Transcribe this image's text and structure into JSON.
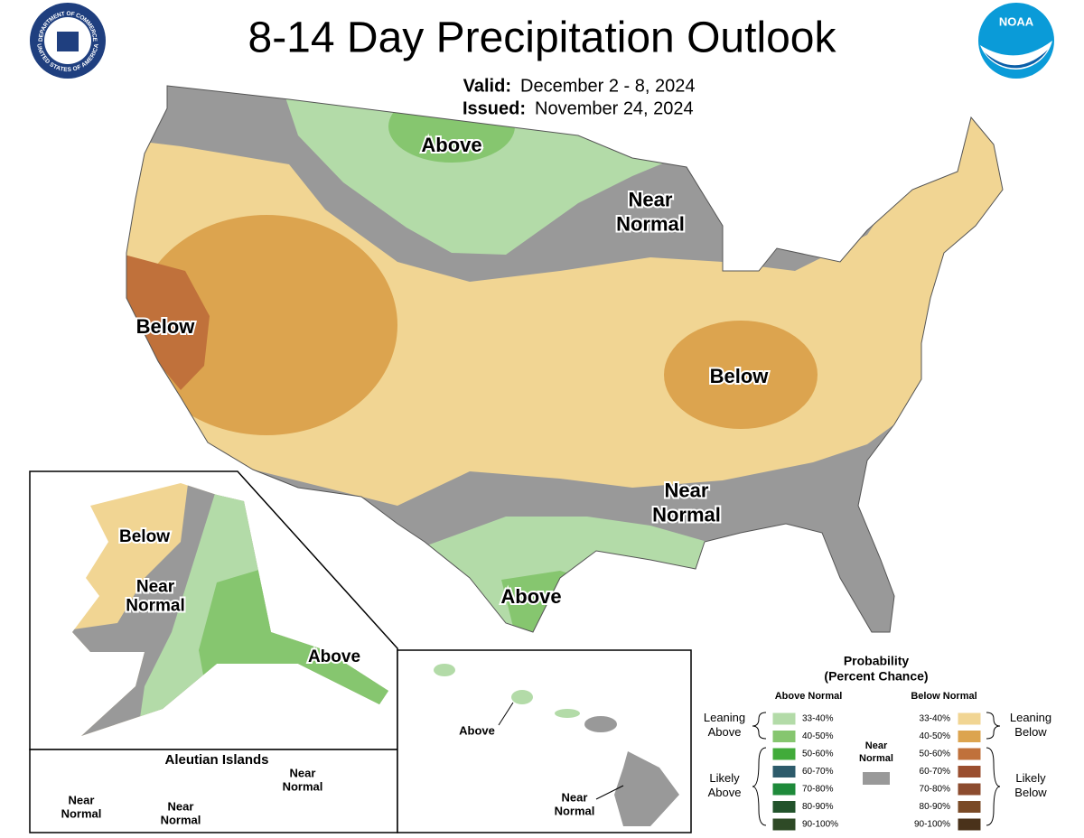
{
  "header": {
    "title": "8-14 Day Precipitation Outlook",
    "valid_label": "Valid:",
    "valid": "December 2 - 8, 2024",
    "issued_label": "Issued:",
    "issued": "November 24, 2024"
  },
  "logos": {
    "commerce_top": "DEPARTMENT OF COMMERCE",
    "commerce_bottom": "UNITED STATES OF AMERICA",
    "noaa": "NOAA"
  },
  "labels": {
    "conus": [
      "Above",
      "Near Normal",
      "Below",
      "Below",
      "Near Normal",
      "Above"
    ],
    "alaska": [
      "Below",
      "Near Normal",
      "Above"
    ],
    "hawaii": [
      "Above",
      "Near Normal"
    ],
    "aleutians": {
      "title": "Aleutian Islands",
      "items": [
        "Near Normal",
        "Near Normal",
        "Near Normal"
      ]
    }
  },
  "legend": {
    "title": "Probability",
    "subtitle": "(Percent Chance)",
    "above_header": "Above Normal",
    "below_header": "Below Normal",
    "near_header": "Near Normal",
    "near_color": "#999999",
    "leaning_above": "Leaning Above",
    "likely_above": "Likely Above",
    "leaning_below": "Leaning Below",
    "likely_below": "Likely Below",
    "above": [
      {
        "label": "33-40%",
        "color": "#b3dba8"
      },
      {
        "label": "40-50%",
        "color": "#86c66f"
      },
      {
        "label": "50-60%",
        "color": "#41ab3a"
      },
      {
        "label": "60-70%",
        "color": "#2d5b6b"
      },
      {
        "label": "70-80%",
        "color": "#1e8a3a"
      },
      {
        "label": "80-90%",
        "color": "#22532b"
      },
      {
        "label": "90-100%",
        "color": "#2e4a26"
      }
    ],
    "below": [
      {
        "label": "33-40%",
        "color": "#f1d593"
      },
      {
        "label": "40-50%",
        "color": "#dca44f"
      },
      {
        "label": "50-60%",
        "color": "#c0713b"
      },
      {
        "label": "60-70%",
        "color": "#9a4e2e"
      },
      {
        "label": "70-80%",
        "color": "#8c4b2e"
      },
      {
        "label": "80-90%",
        "color": "#7a4a26"
      },
      {
        "label": "90-100%",
        "color": "#4a321a"
      }
    ]
  }
}
